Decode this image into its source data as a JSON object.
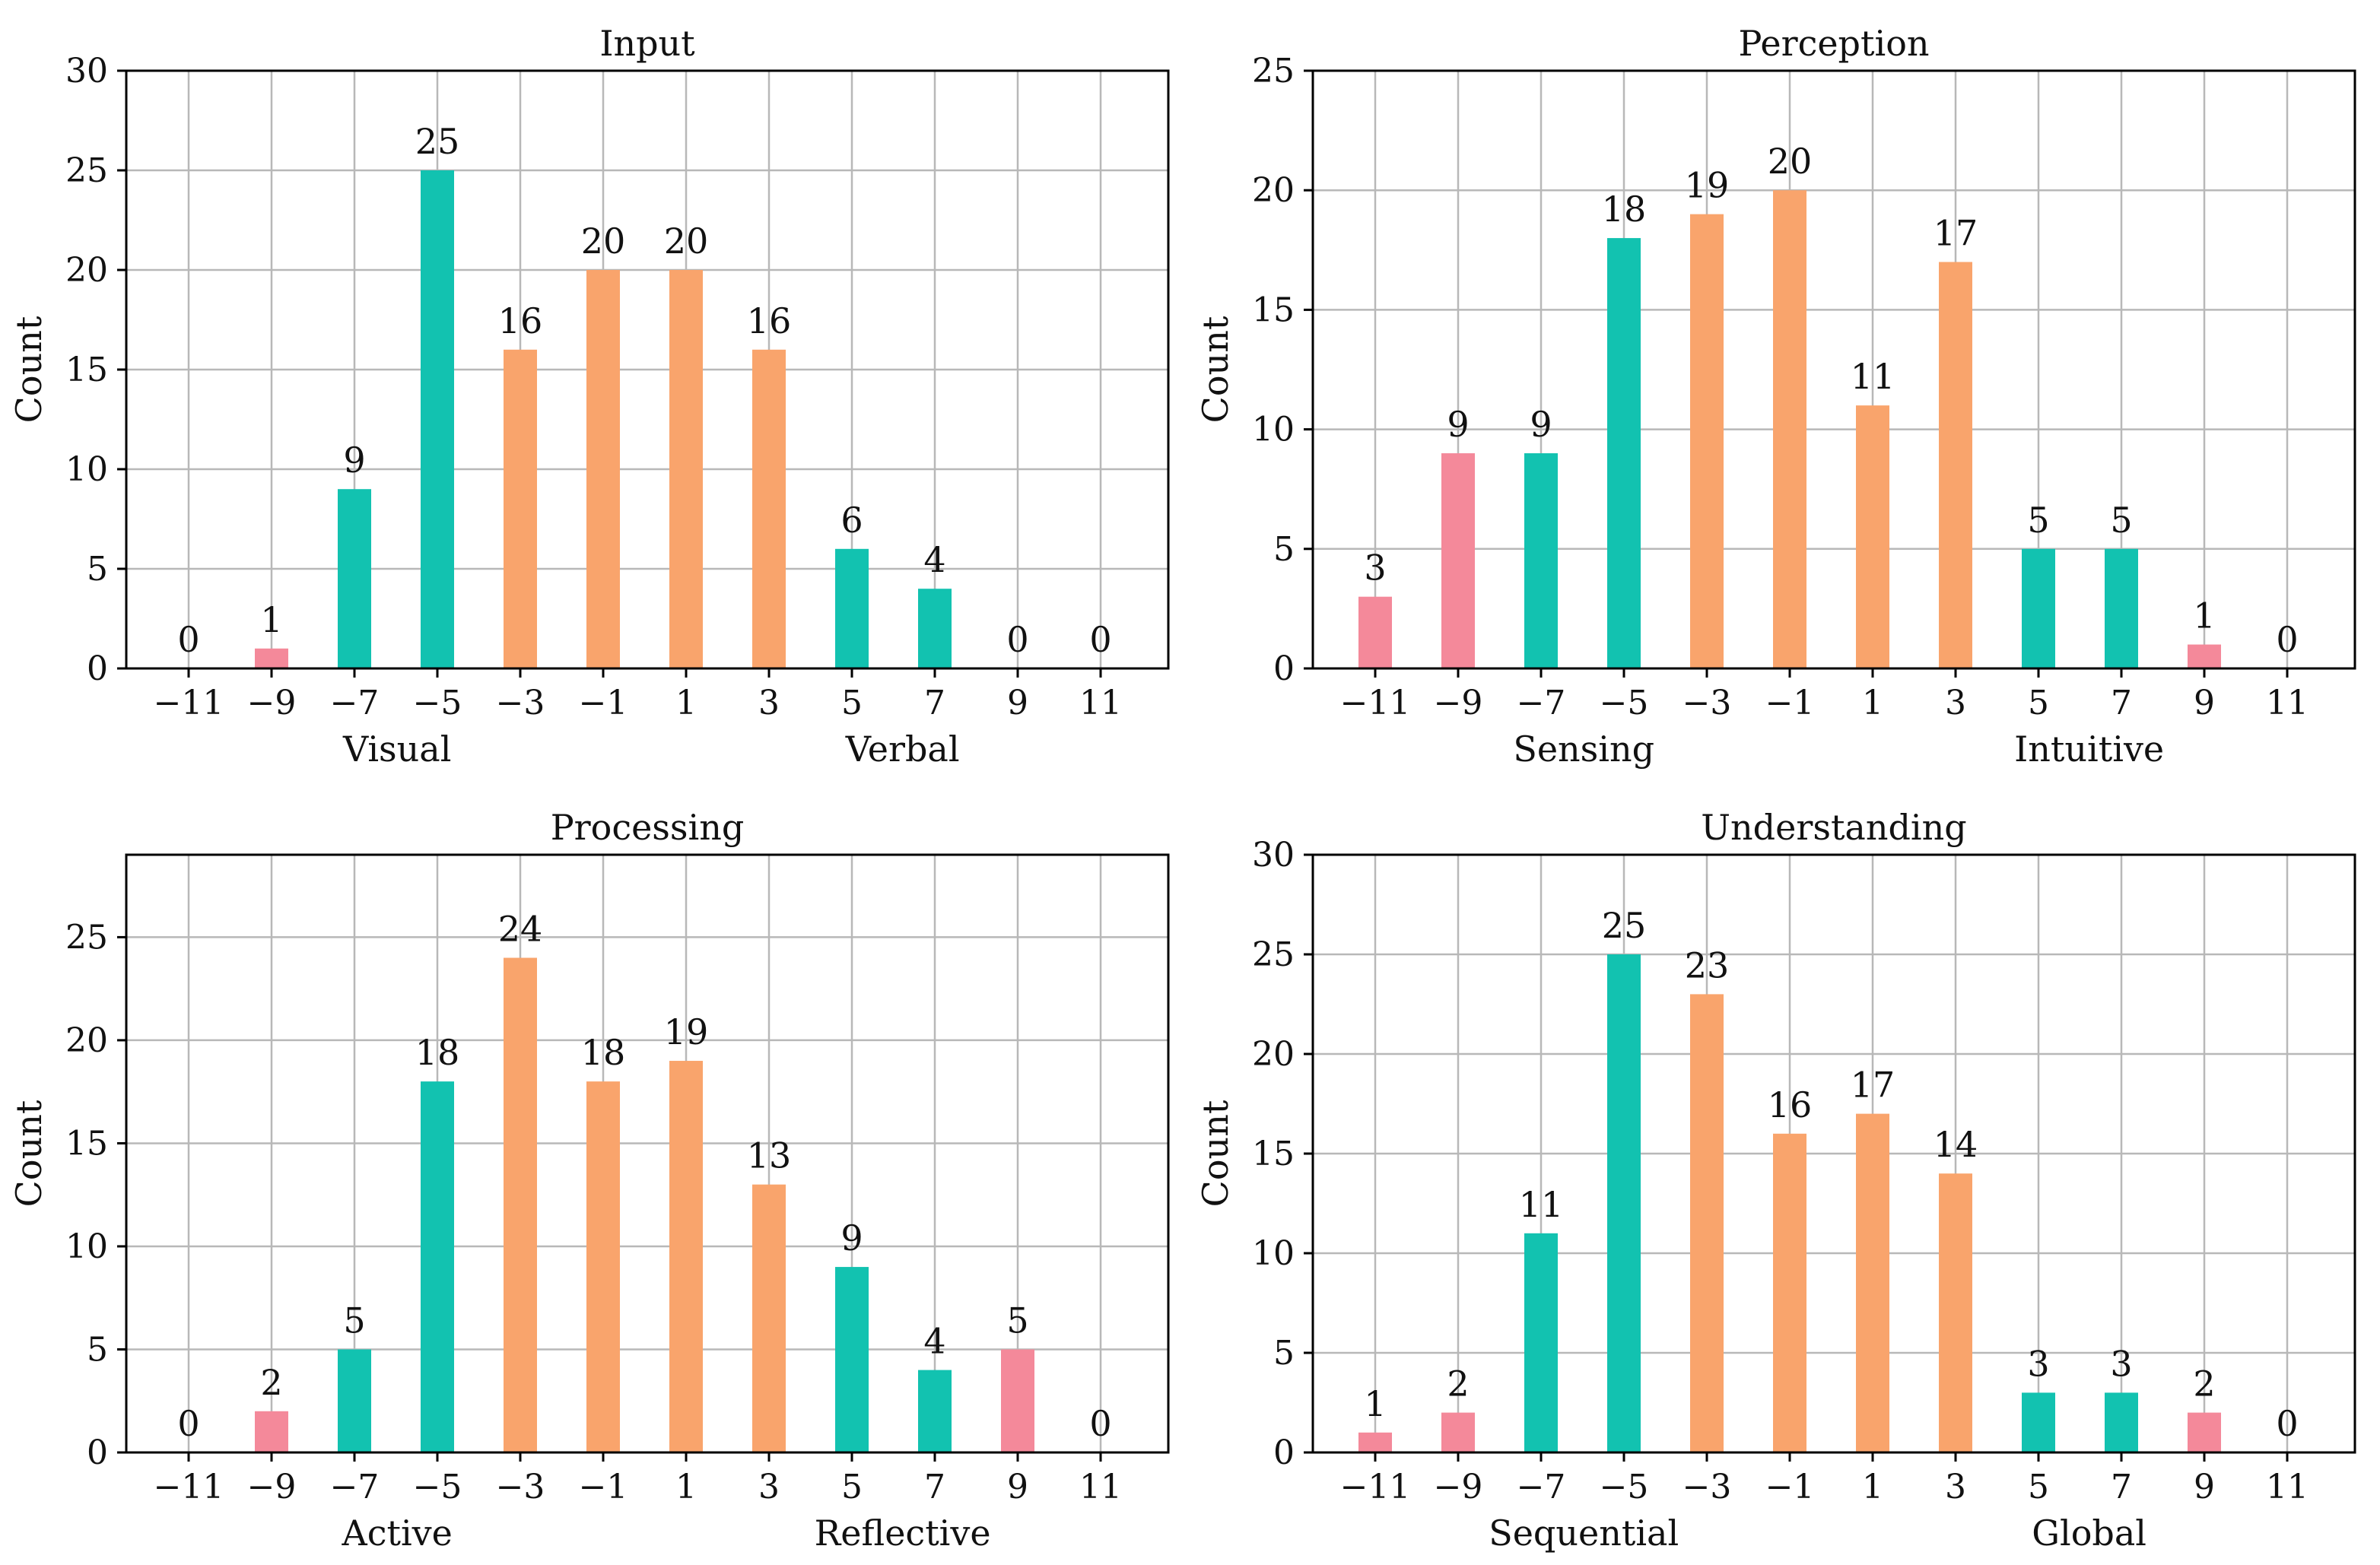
{
  "colors": {
    "red": "#F4899A",
    "green": "#12C2B0",
    "orange": "#F9A46C",
    "grid": "#b8b8b8",
    "frame": "#000000"
  },
  "chart_data": [
    {
      "type": "bar",
      "title": "Input",
      "ylabel": "Count",
      "xlabel_left": "Visual",
      "xlabel_right": "Verbal",
      "ylim": [
        0,
        30
      ],
      "yticks": [
        0,
        5,
        10,
        15,
        20,
        25,
        30
      ],
      "categories": [
        "−11",
        "−9",
        "−7",
        "−5",
        "−3",
        "−1",
        "1",
        "3",
        "5",
        "7",
        "9",
        "11"
      ],
      "values": [
        0,
        1,
        9,
        25,
        16,
        20,
        20,
        16,
        6,
        4,
        0,
        0
      ],
      "bar_colors": [
        "red",
        "red",
        "green",
        "green",
        "orange",
        "orange",
        "orange",
        "orange",
        "green",
        "green",
        "red",
        "red"
      ]
    },
    {
      "type": "bar",
      "title": "Perception",
      "ylabel": "Count",
      "xlabel_left": "Sensing",
      "xlabel_right": "Intuitive",
      "ylim": [
        0,
        25
      ],
      "yticks": [
        0,
        5,
        10,
        15,
        20,
        25
      ],
      "categories": [
        "−11",
        "−9",
        "−7",
        "−5",
        "−3",
        "−1",
        "1",
        "3",
        "5",
        "7",
        "9",
        "11"
      ],
      "values": [
        3,
        9,
        9,
        18,
        19,
        20,
        11,
        17,
        5,
        5,
        1,
        0
      ],
      "bar_colors": [
        "red",
        "red",
        "green",
        "green",
        "orange",
        "orange",
        "orange",
        "orange",
        "green",
        "green",
        "red",
        "red"
      ]
    },
    {
      "type": "bar",
      "title": "Processing",
      "ylabel": "Count",
      "xlabel_left": "Active",
      "xlabel_right": "Reflective",
      "ylim": [
        0,
        29
      ],
      "yticks": [
        0,
        5,
        10,
        15,
        20,
        25
      ],
      "categories": [
        "−11",
        "−9",
        "−7",
        "−5",
        "−3",
        "−1",
        "1",
        "3",
        "5",
        "7",
        "9",
        "11"
      ],
      "values": [
        0,
        2,
        5,
        18,
        24,
        18,
        19,
        13,
        9,
        4,
        5,
        0
      ],
      "bar_colors": [
        "red",
        "red",
        "green",
        "green",
        "orange",
        "orange",
        "orange",
        "orange",
        "green",
        "green",
        "red",
        "red"
      ]
    },
    {
      "type": "bar",
      "title": "Understanding",
      "ylabel": "Count",
      "xlabel_left": "Sequential",
      "xlabel_right": "Global",
      "ylim": [
        0,
        30
      ],
      "yticks": [
        0,
        5,
        10,
        15,
        20,
        25,
        30
      ],
      "categories": [
        "−11",
        "−9",
        "−7",
        "−5",
        "−3",
        "−1",
        "1",
        "3",
        "5",
        "7",
        "9",
        "11"
      ],
      "values": [
        1,
        2,
        11,
        25,
        23,
        16,
        17,
        14,
        3,
        3,
        2,
        0
      ],
      "bar_colors": [
        "red",
        "red",
        "green",
        "green",
        "orange",
        "orange",
        "orange",
        "orange",
        "green",
        "green",
        "red",
        "red"
      ]
    }
  ]
}
